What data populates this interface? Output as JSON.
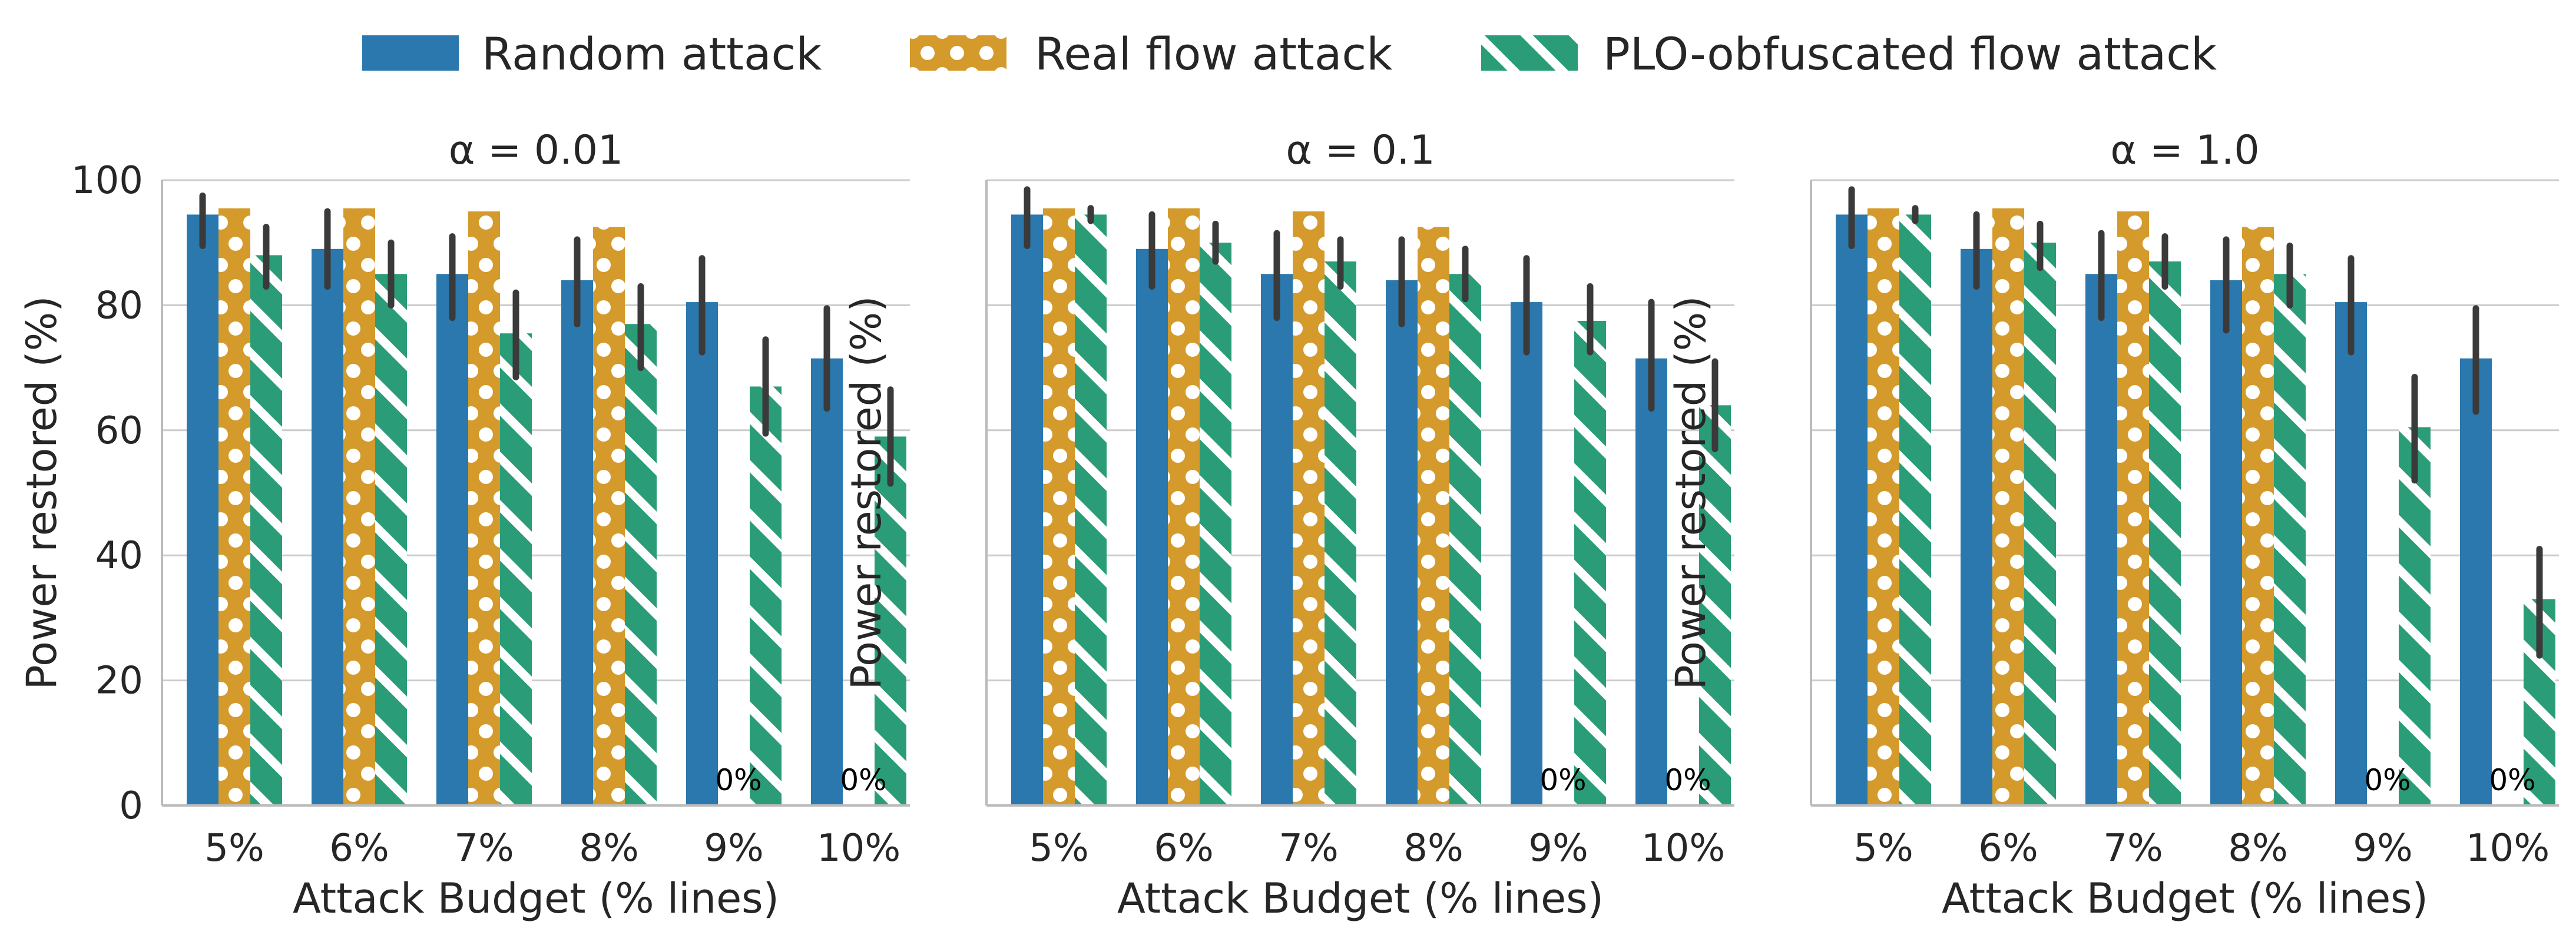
{
  "chart_data": {
    "type": "bar",
    "xlabel": "Attack Budget (% lines)",
    "ylabel": "Power restored (%)",
    "ylim": [
      0,
      100
    ],
    "yticks": [
      "0",
      "20",
      "40",
      "60",
      "80",
      "100"
    ],
    "categories": [
      "5%",
      "6%",
      "7%",
      "8%",
      "9%",
      "10%"
    ],
    "grid": true,
    "legend_position": "top-center",
    "legend": [
      "Random attack",
      "Real flow attack",
      "PLO-obfuscated flow attack"
    ],
    "colors": {
      "random": "#2a78ad",
      "real": "#d49a2c",
      "plo": "#2a9d78",
      "error_bar": "#3a3a3a",
      "grid": "#cccccc",
      "axis": "#bbbbbb"
    },
    "panels": [
      {
        "title": "α = 0.01",
        "series": [
          {
            "name": "Random attack",
            "values": [
              94.5,
              89,
              85,
              84,
              80.5,
              71.5
            ],
            "err_low": [
              89.5,
              83,
              78,
              77,
              72.5,
              63.5
            ],
            "err_high": [
              97.5,
              95,
              91,
              90.5,
              87.5,
              79.5
            ]
          },
          {
            "name": "Real flow attack",
            "values": [
              95.5,
              95.5,
              95,
              92.5,
              0,
              0
            ],
            "err_low": [
              null,
              null,
              null,
              null,
              null,
              null
            ],
            "err_high": [
              null,
              null,
              null,
              null,
              null,
              null
            ]
          },
          {
            "name": "PLO-obfuscated flow attack",
            "values": [
              88,
              85,
              75.5,
              77,
              67,
              59
            ],
            "err_low": [
              83,
              80,
              68.5,
              70,
              59.5,
              51.5
            ],
            "err_high": [
              92.5,
              90,
              82,
              83,
              74.5,
              66.5
            ]
          }
        ],
        "annotations": [
          {
            "category": "9%",
            "text": "0%"
          },
          {
            "category": "10%",
            "text": "0%"
          }
        ]
      },
      {
        "title": "α = 0.1",
        "series": [
          {
            "name": "Random attack",
            "values": [
              94.5,
              89,
              85,
              84,
              80.5,
              71.5
            ],
            "err_low": [
              89.5,
              83,
              78,
              77,
              72.5,
              63.5
            ],
            "err_high": [
              98.5,
              94.5,
              91.5,
              90.5,
              87.5,
              80.5
            ]
          },
          {
            "name": "Real flow attack",
            "values": [
              95.5,
              95.5,
              95,
              92.5,
              0,
              0
            ],
            "err_low": [
              null,
              null,
              null,
              null,
              null,
              null
            ],
            "err_high": [
              null,
              null,
              null,
              null,
              null,
              null
            ]
          },
          {
            "name": "PLO-obfuscated flow attack",
            "values": [
              94.5,
              90,
              87,
              85,
              77.5,
              64
            ],
            "err_low": [
              93.5,
              87,
              83,
              81,
              72.5,
              57
            ],
            "err_high": [
              95.5,
              93,
              90.5,
              89,
              83,
              71
            ]
          }
        ],
        "annotations": [
          {
            "category": "9%",
            "text": "0%"
          },
          {
            "category": "10%",
            "text": "0%"
          }
        ]
      },
      {
        "title": "α = 1.0",
        "series": [
          {
            "name": "Random attack",
            "values": [
              94.5,
              89,
              85,
              84,
              80.5,
              71.5
            ],
            "err_low": [
              89.5,
              83,
              78,
              76,
              72.5,
              63
            ],
            "err_high": [
              98.5,
              94.5,
              91.5,
              90.5,
              87.5,
              79.5
            ]
          },
          {
            "name": "Real flow attack",
            "values": [
              95.5,
              95.5,
              95,
              92.5,
              0,
              0
            ],
            "err_low": [
              null,
              null,
              null,
              null,
              null,
              null
            ],
            "err_high": [
              null,
              null,
              null,
              null,
              null,
              null
            ]
          },
          {
            "name": "PLO-obfuscated flow attack",
            "values": [
              94.5,
              90,
              87,
              85,
              60.5,
              33
            ],
            "err_low": [
              93.5,
              86,
              83,
              80,
              52,
              24
            ],
            "err_high": [
              95.5,
              93,
              91,
              89.5,
              68.5,
              41
            ]
          }
        ],
        "annotations": [
          {
            "category": "9%",
            "text": "0%"
          },
          {
            "category": "10%",
            "text": "0%"
          }
        ]
      }
    ]
  }
}
